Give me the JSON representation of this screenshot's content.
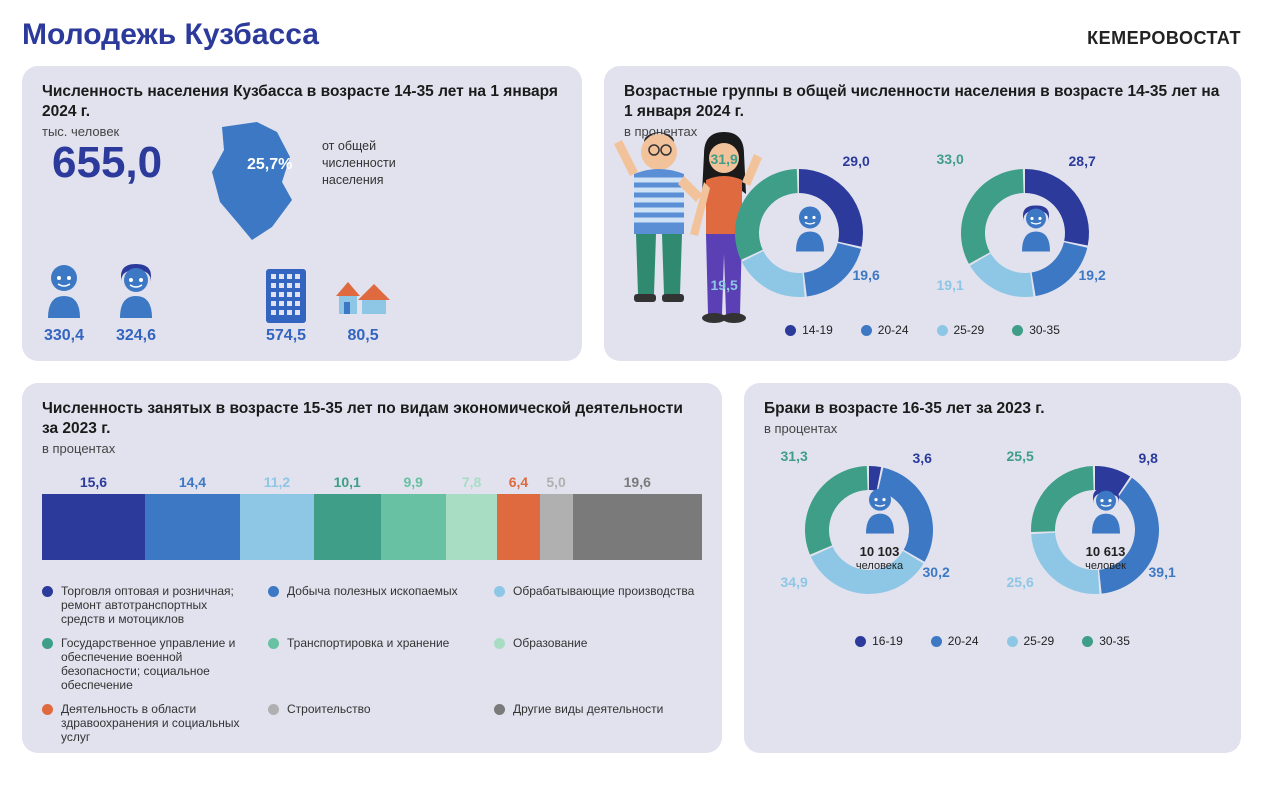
{
  "page": {
    "title": "Молодежь Кузбасса",
    "brand": "КЕМЕРОВОСТАТ",
    "bg": "#ffffff",
    "card_bg": "#e1e2ee",
    "title_color": "#2b3a9b"
  },
  "colors": {
    "navy": "#2b3a9b",
    "blue": "#3c78c4",
    "lightblue": "#8ec7e6",
    "teal": "#3e9e87",
    "mint": "#68c1a2",
    "pale": "#a8dcc3",
    "orange": "#e06a3f",
    "grey": "#b0b0b0",
    "dgrey": "#7a7a7a"
  },
  "card1": {
    "title": "Численность населения Кузбасса в возрасте 14-35 лет на 1 января 2024 г.",
    "sub": "тыс. человек",
    "big_value": "655,0",
    "map_pct": "25,7%",
    "map_pct_label": "от общей\nчисленности\nнаселения",
    "figs": {
      "male": "330,4",
      "female": "324,6",
      "urban": "574,5",
      "rural": "80,5"
    }
  },
  "card2": {
    "title": "Возрастные группы в общей численности населения в возрасте 14-35 лет на 1 января 2024 г.",
    "sub": "в процентах",
    "donuts": [
      {
        "gender": "male",
        "slices": [
          {
            "key": "14-19",
            "value": 29.0,
            "color": "#2b3a9b",
            "label": "29,0",
            "pos": "tr"
          },
          {
            "key": "20-24",
            "value": 19.6,
            "color": "#3c78c4",
            "label": "19,6",
            "pos": "br"
          },
          {
            "key": "25-29",
            "value": 19.5,
            "color": "#8ec7e6",
            "label": "19,5",
            "pos": "bl"
          },
          {
            "key": "30-35",
            "value": 31.9,
            "color": "#3e9e87",
            "label": "31,9",
            "pos": "tl"
          }
        ]
      },
      {
        "gender": "female",
        "slices": [
          {
            "key": "14-19",
            "value": 28.7,
            "color": "#2b3a9b",
            "label": "28,7",
            "pos": "tr"
          },
          {
            "key": "20-24",
            "value": 19.2,
            "color": "#3c78c4",
            "label": "19,2",
            "pos": "br"
          },
          {
            "key": "25-29",
            "value": 19.1,
            "color": "#8ec7e6",
            "label": "19,1",
            "pos": "bl"
          },
          {
            "key": "30-35",
            "value": 33.0,
            "color": "#3e9e87",
            "label": "33,0",
            "pos": "tl"
          }
        ]
      }
    ],
    "legend": [
      {
        "label": "14-19",
        "color": "#2b3a9b"
      },
      {
        "label": "20-24",
        "color": "#3c78c4"
      },
      {
        "label": "25-29",
        "color": "#8ec7e6"
      },
      {
        "label": "30-35",
        "color": "#3e9e87"
      }
    ]
  },
  "card3": {
    "title": "Численность занятых в возрасте 15-35 лет по видам экономической деятельности за 2023 г.",
    "sub": "в процентах",
    "bars": [
      {
        "value": 15.6,
        "label": "15,6",
        "color": "#2b3a9b",
        "name": "Торговля оптовая и розничная; ремонт автотранспортных средств и мотоциклов"
      },
      {
        "value": 14.4,
        "label": "14,4",
        "color": "#3c78c4",
        "name": "Добыча полезных ископаемых"
      },
      {
        "value": 11.2,
        "label": "11,2",
        "color": "#8ec7e6",
        "name": "Обрабатывающие производства"
      },
      {
        "value": 10.1,
        "label": "10,1",
        "color": "#3e9e87",
        "name": "Государственное управление и обеспечение военной безопасности; социальное обеспечение"
      },
      {
        "value": 9.9,
        "label": "9,9",
        "color": "#68c1a2",
        "name": "Транспортировка и хранение"
      },
      {
        "value": 7.8,
        "label": "7,8",
        "color": "#a8dcc3",
        "name": "Образование"
      },
      {
        "value": 6.4,
        "label": "6,4",
        "color": "#e06a3f",
        "name": "Деятельность в области здравоохранения и социальных услуг"
      },
      {
        "value": 5.0,
        "label": "5,0",
        "color": "#b0b0b0",
        "name": "Строительство"
      },
      {
        "value": 19.6,
        "label": "19,6",
        "color": "#7a7a7a",
        "name": "Другие виды деятельности"
      }
    ],
    "legend_order": [
      0,
      1,
      2,
      3,
      4,
      5,
      6,
      7,
      8
    ]
  },
  "card4": {
    "title": "Браки в возрасте 16-35 лет за 2023 г.",
    "sub": "в процентах",
    "donuts": [
      {
        "gender": "male",
        "center_num": "10 103",
        "center_unit": "человека",
        "slices": [
          {
            "key": "16-19",
            "value": 3.6,
            "color": "#2b3a9b",
            "label": "3,6",
            "pos": "tr"
          },
          {
            "key": "20-24",
            "value": 30.2,
            "color": "#3c78c4",
            "label": "30,2",
            "pos": "br"
          },
          {
            "key": "25-29",
            "value": 34.9,
            "color": "#8ec7e6",
            "label": "34,9",
            "pos": "bl"
          },
          {
            "key": "30-35",
            "value": 31.3,
            "color": "#3e9e87",
            "label": "31,3",
            "pos": "tl"
          }
        ]
      },
      {
        "gender": "female",
        "center_num": "10 613",
        "center_unit": "человек",
        "slices": [
          {
            "key": "16-19",
            "value": 9.8,
            "color": "#2b3a9b",
            "label": "9,8",
            "pos": "tr"
          },
          {
            "key": "20-24",
            "value": 39.1,
            "color": "#3c78c4",
            "label": "39,1",
            "pos": "br"
          },
          {
            "key": "25-29",
            "value": 25.6,
            "color": "#8ec7e6",
            "label": "25,6",
            "pos": "bl"
          },
          {
            "key": "30-35",
            "value": 25.5,
            "color": "#3e9e87",
            "label": "25,5",
            "pos": "tl"
          }
        ]
      }
    ],
    "legend": [
      {
        "label": "16-19",
        "color": "#2b3a9b"
      },
      {
        "label": "20-24",
        "color": "#3c78c4"
      },
      {
        "label": "25-29",
        "color": "#8ec7e6"
      },
      {
        "label": "30-35",
        "color": "#3e9e87"
      }
    ]
  }
}
